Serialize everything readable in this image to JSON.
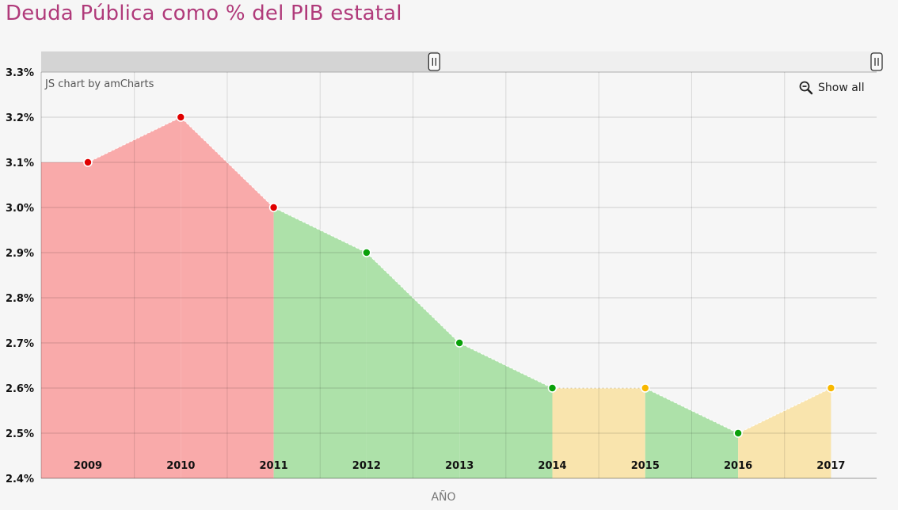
{
  "title": "Deuda Pública como % del PIB estatal",
  "credit": "JS chart by amCharts",
  "zoom": {
    "show_all_label": "Show all",
    "icon": "zoom-out-icon"
  },
  "colors": {
    "title": "#b03a7a",
    "red_fill": "#f9aaaa",
    "red_point": "#e00000",
    "green_fill": "#ade1a9",
    "green_point": "#0aa00a",
    "yellow_fill": "#f9e4ad",
    "yellow_point": "#f8b800"
  },
  "chart_data": {
    "type": "area",
    "title": "Deuda Pública como % del PIB estatal",
    "xlabel": "AÑO",
    "ylabel": "",
    "categories": [
      "2009",
      "2010",
      "2011",
      "2012",
      "2013",
      "2014",
      "2015",
      "2016",
      "2017"
    ],
    "series": [
      {
        "values": [
          3.1,
          3.2,
          3.0,
          2.9,
          2.7,
          2.6,
          2.6,
          2.5,
          2.6
        ],
        "point_colors": [
          "red",
          "red",
          "red",
          "green",
          "green",
          "green",
          "yellow",
          "green",
          "yellow"
        ],
        "segment_colors": [
          "red",
          "red",
          "green",
          "green",
          "green",
          "yellow",
          "green",
          "yellow"
        ]
      }
    ],
    "ylim": [
      2.4,
      3.3
    ],
    "y_ticks": [
      "2.4%",
      "2.5%",
      "2.6%",
      "2.7%",
      "2.8%",
      "2.9%",
      "3.0%",
      "3.1%",
      "3.2%",
      "3.3%"
    ],
    "grid": true,
    "scrollbar": {
      "visible": true,
      "selected_fraction": [
        0,
        0.47
      ]
    }
  }
}
